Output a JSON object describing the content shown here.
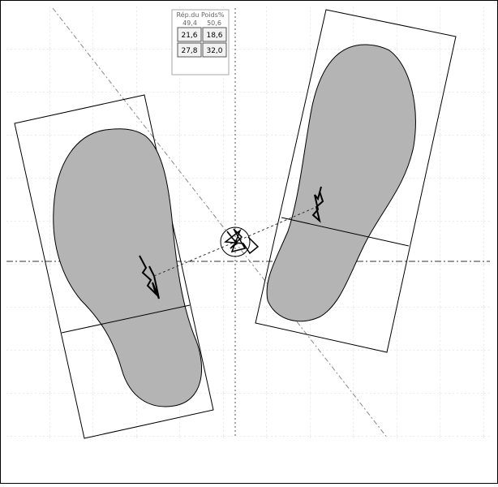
{
  "weight_distribution": {
    "title": "Rép.du Poids%",
    "left_total": "49,4",
    "right_total": "50,6",
    "rows": [
      [
        "21,6",
        "18,6"
      ],
      [
        "27,8",
        "32,0"
      ]
    ]
  }
}
